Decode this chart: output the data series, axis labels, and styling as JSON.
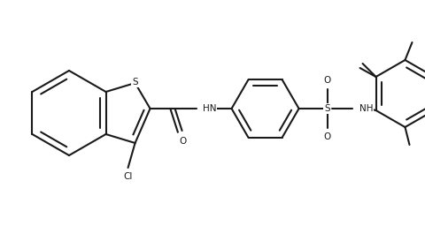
{
  "bg_color": "#ffffff",
  "line_color": "#1a1a1a",
  "line_width": 1.5,
  "figsize": [
    4.8,
    2.56
  ],
  "dpi": 100,
  "xlim": [
    0.0,
    4.8
  ],
  "ylim": [
    0.0,
    2.56
  ]
}
